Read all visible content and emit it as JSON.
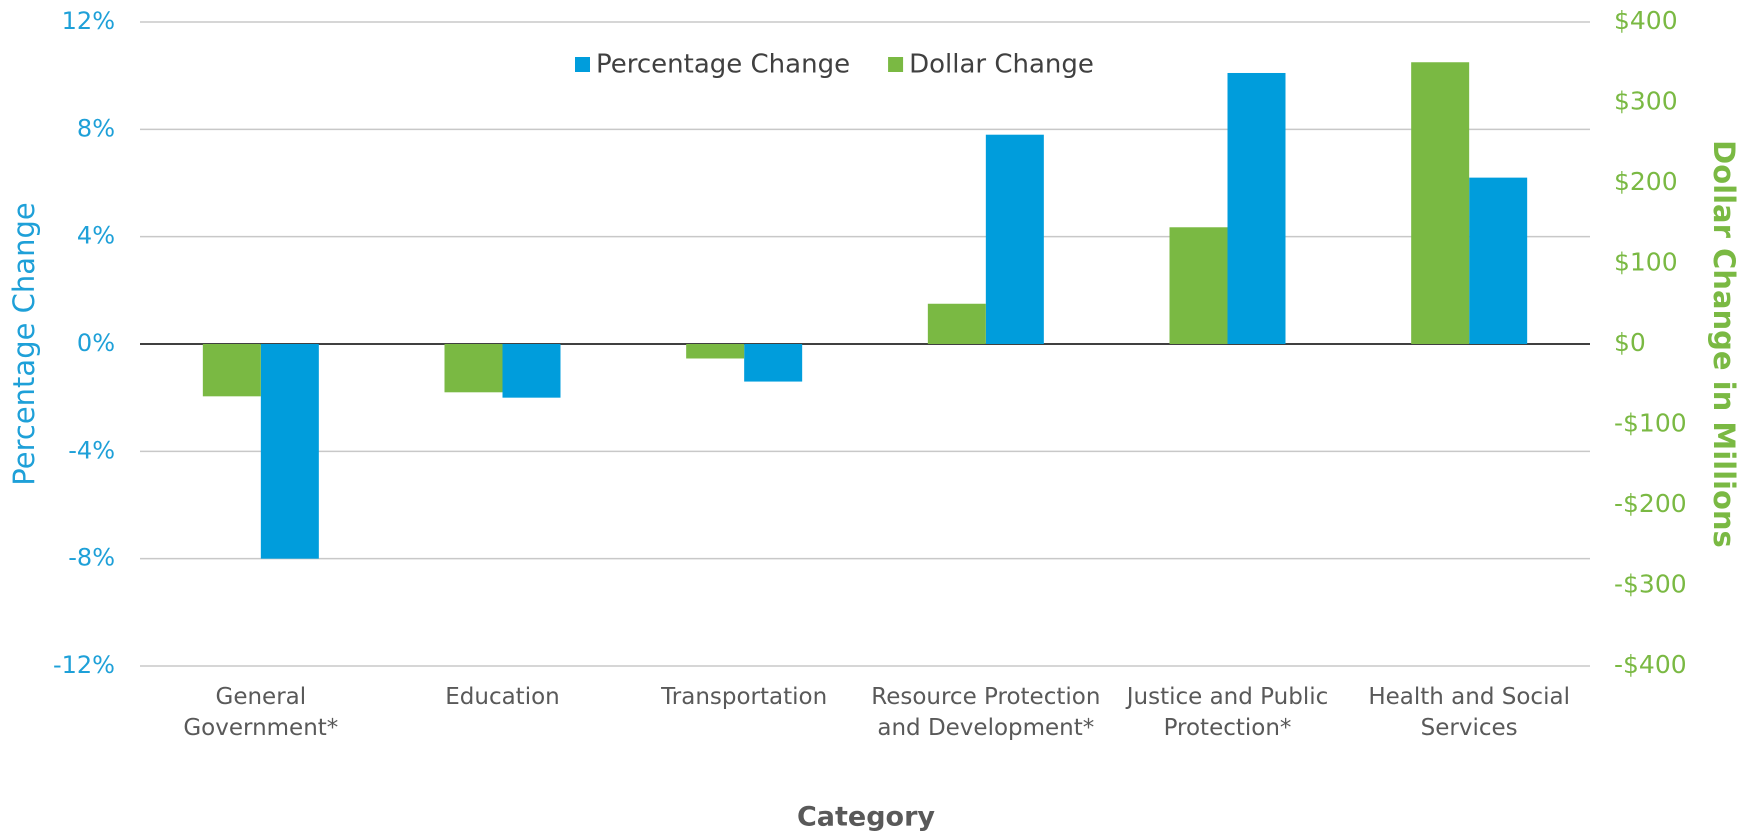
{
  "chart_data": {
    "type": "bar",
    "x_label": "Category",
    "y_label": "Percentage Change",
    "y2_label": "Dollar Change in Millions",
    "categories": [
      "General Government*",
      "Education",
      "Transportation",
      "Resource Protection and Development*",
      "Justice and Public Protection*",
      "Health and Social Services"
    ],
    "series": [
      {
        "name": "Percentage Change",
        "color": "#009ddc",
        "values": [
          -8,
          -2,
          -1.4,
          7.8,
          10.1,
          6.2
        ]
      },
      {
        "name": "Dollar Change",
        "color": "#7ab943",
        "axis": "y2",
        "values": [
          -65,
          -60,
          -18,
          50,
          145,
          350
        ]
      }
    ],
    "ylim": [
      -12,
      12
    ],
    "yticks": [
      {
        "value": -12,
        "label": "-12%"
      },
      {
        "value": -8,
        "label": "-8%"
      },
      {
        "value": -4,
        "label": "-4%"
      },
      {
        "value": 0,
        "label": "0%"
      },
      {
        "value": 4,
        "label": "4%"
      },
      {
        "value": 8,
        "label": "8%"
      },
      {
        "value": 12,
        "label": "12%"
      }
    ],
    "y2lim": [
      -400,
      400
    ],
    "y2ticks": [
      {
        "value": -400,
        "label": "-$400"
      },
      {
        "value": -300,
        "label": "-$300"
      },
      {
        "value": -200,
        "label": "-$200"
      },
      {
        "value": -100,
        "label": "-$100"
      },
      {
        "value": 0,
        "label": "$0"
      },
      {
        "value": 100,
        "label": "$100"
      },
      {
        "value": 200,
        "label": "$200"
      },
      {
        "value": 300,
        "label": "$300"
      },
      {
        "value": 400,
        "label": "$400"
      }
    ],
    "grid": true
  }
}
